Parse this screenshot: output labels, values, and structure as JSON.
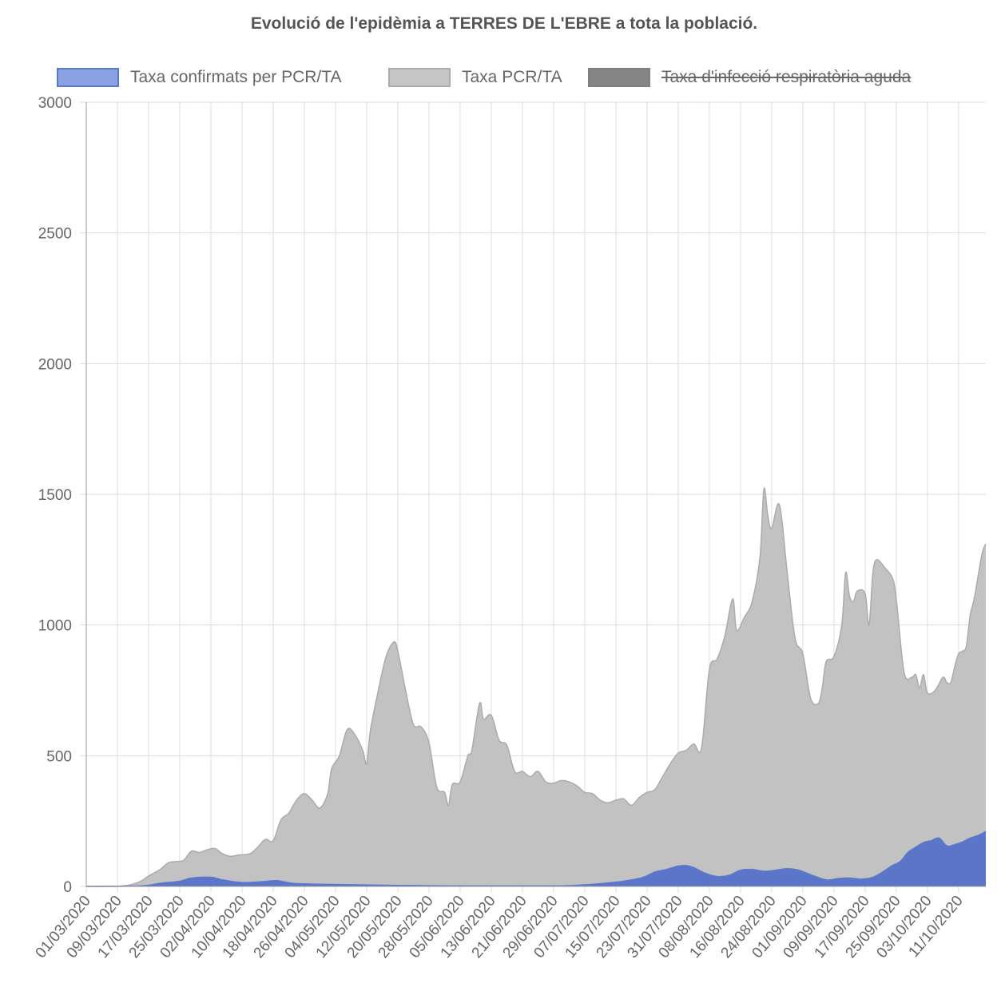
{
  "chart_data": {
    "type": "area",
    "title": "Evolució de l'epidèmia a TERRES DE L'EBRE a tota la població.",
    "xlabel": "",
    "ylabel": "",
    "ylim": [
      0,
      3000
    ],
    "yticks": [
      0,
      500,
      1000,
      1500,
      2000,
      2500,
      3000
    ],
    "grid": true,
    "legend_position": "top",
    "x_start": "01/03/2020",
    "x_end": "18/10/2020",
    "x_tick_labels": [
      "01/03/2020",
      "09/03/2020",
      "17/03/2020",
      "25/03/2020",
      "02/04/2020",
      "10/04/2020",
      "18/04/2020",
      "26/04/2020",
      "04/05/2020",
      "12/05/2020",
      "20/05/2020",
      "28/05/2020",
      "05/06/2020",
      "13/06/2020",
      "21/06/2020",
      "29/06/2020",
      "07/07/2020",
      "15/07/2020",
      "23/07/2020",
      "31/07/2020",
      "08/08/2020",
      "16/08/2020",
      "24/08/2020",
      "01/09/2020",
      "09/09/2020",
      "17/09/2020",
      "25/09/2020",
      "03/10/2020",
      "11/10/2020"
    ],
    "series": [
      {
        "name": "Taxa confirmats per PCR/TA",
        "color": "#5a78cc",
        "fill": "#5b76c8",
        "points": [
          [
            "01/03/2020",
            0
          ],
          [
            "15/03/2020",
            2
          ],
          [
            "20/03/2020",
            12
          ],
          [
            "25/03/2020",
            20
          ],
          [
            "28/03/2020",
            32
          ],
          [
            "02/04/2020",
            35
          ],
          [
            "05/04/2020",
            25
          ],
          [
            "10/04/2020",
            15
          ],
          [
            "15/04/2020",
            18
          ],
          [
            "19/04/2020",
            22
          ],
          [
            "23/04/2020",
            12
          ],
          [
            "01/05/2020",
            8
          ],
          [
            "10/05/2020",
            6
          ],
          [
            "20/05/2020",
            4
          ],
          [
            "01/06/2020",
            2
          ],
          [
            "15/06/2020",
            2
          ],
          [
            "01/07/2020",
            2
          ],
          [
            "07/07/2020",
            6
          ],
          [
            "12/07/2020",
            12
          ],
          [
            "17/07/2020",
            20
          ],
          [
            "22/07/2020",
            35
          ],
          [
            "25/07/2020",
            55
          ],
          [
            "28/07/2020",
            65
          ],
          [
            "31/07/2020",
            78
          ],
          [
            "02/08/2020",
            80
          ],
          [
            "04/08/2020",
            72
          ],
          [
            "07/08/2020",
            50
          ],
          [
            "10/08/2020",
            38
          ],
          [
            "13/08/2020",
            42
          ],
          [
            "16/08/2020",
            62
          ],
          [
            "19/08/2020",
            65
          ],
          [
            "22/08/2020",
            58
          ],
          [
            "25/08/2020",
            62
          ],
          [
            "28/08/2020",
            68
          ],
          [
            "31/08/2020",
            62
          ],
          [
            "03/09/2020",
            45
          ],
          [
            "07/09/2020",
            25
          ],
          [
            "10/09/2020",
            30
          ],
          [
            "13/09/2020",
            32
          ],
          [
            "16/09/2020",
            28
          ],
          [
            "19/09/2020",
            35
          ],
          [
            "22/09/2020",
            60
          ],
          [
            "24/09/2020",
            80
          ],
          [
            "26/09/2020",
            95
          ],
          [
            "28/09/2020",
            130
          ],
          [
            "30/09/2020",
            150
          ],
          [
            "02/10/2020",
            168
          ],
          [
            "04/10/2020",
            175
          ],
          [
            "06/10/2020",
            185
          ],
          [
            "08/10/2020",
            155
          ],
          [
            "10/10/2020",
            160
          ],
          [
            "12/10/2020",
            170
          ],
          [
            "14/10/2020",
            185
          ],
          [
            "16/10/2020",
            195
          ],
          [
            "18/10/2020",
            210
          ]
        ]
      },
      {
        "name": "Taxa PCR/TA",
        "color": "#ababab",
        "fill": "#c2c2c2",
        "points": [
          [
            "01/03/2020",
            0
          ],
          [
            "08/03/2020",
            0
          ],
          [
            "12/03/2020",
            5
          ],
          [
            "15/03/2020",
            20
          ],
          [
            "17/03/2020",
            40
          ],
          [
            "20/03/2020",
            65
          ],
          [
            "22/03/2020",
            90
          ],
          [
            "24/03/2020",
            95
          ],
          [
            "26/03/2020",
            100
          ],
          [
            "28/03/2020",
            135
          ],
          [
            "30/03/2020",
            130
          ],
          [
            "01/04/2020",
            140
          ],
          [
            "03/04/2020",
            145
          ],
          [
            "05/04/2020",
            125
          ],
          [
            "07/04/2020",
            115
          ],
          [
            "09/04/2020",
            120
          ],
          [
            "12/04/2020",
            125
          ],
          [
            "14/04/2020",
            150
          ],
          [
            "16/04/2020",
            180
          ],
          [
            "18/04/2020",
            175
          ],
          [
            "20/04/2020",
            255
          ],
          [
            "22/04/2020",
            280
          ],
          [
            "24/04/2020",
            330
          ],
          [
            "26/04/2020",
            355
          ],
          [
            "28/04/2020",
            330
          ],
          [
            "30/04/2020",
            300
          ],
          [
            "02/05/2020",
            355
          ],
          [
            "03/05/2020",
            450
          ],
          [
            "05/05/2020",
            500
          ],
          [
            "07/05/2020",
            600
          ],
          [
            "09/05/2020",
            580
          ],
          [
            "11/05/2020",
            520
          ],
          [
            "12/05/2020",
            470
          ],
          [
            "13/05/2020",
            600
          ],
          [
            "15/05/2020",
            750
          ],
          [
            "17/05/2020",
            880
          ],
          [
            "19/05/2020",
            935
          ],
          [
            "20/05/2020",
            900
          ],
          [
            "22/05/2020",
            750
          ],
          [
            "24/05/2020",
            620
          ],
          [
            "26/05/2020",
            610
          ],
          [
            "28/05/2020",
            550
          ],
          [
            "30/05/2020",
            380
          ],
          [
            "01/06/2020",
            360
          ],
          [
            "02/06/2020",
            310
          ],
          [
            "03/06/2020",
            390
          ],
          [
            "05/06/2020",
            400
          ],
          [
            "07/06/2020",
            500
          ],
          [
            "08/06/2020",
            520
          ],
          [
            "10/06/2020",
            700
          ],
          [
            "11/06/2020",
            640
          ],
          [
            "13/06/2020",
            655
          ],
          [
            "15/06/2020",
            560
          ],
          [
            "17/06/2020",
            540
          ],
          [
            "19/06/2020",
            440
          ],
          [
            "21/06/2020",
            440
          ],
          [
            "23/06/2020",
            420
          ],
          [
            "25/06/2020",
            440
          ],
          [
            "27/06/2020",
            400
          ],
          [
            "29/06/2020",
            395
          ],
          [
            "01/07/2020",
            405
          ],
          [
            "03/07/2020",
            400
          ],
          [
            "05/07/2020",
            385
          ],
          [
            "07/07/2020",
            360
          ],
          [
            "09/07/2020",
            355
          ],
          [
            "11/07/2020",
            330
          ],
          [
            "13/07/2020",
            320
          ],
          [
            "15/07/2020",
            330
          ],
          [
            "17/07/2020",
            335
          ],
          [
            "19/07/2020",
            310
          ],
          [
            "21/07/2020",
            340
          ],
          [
            "23/07/2020",
            360
          ],
          [
            "25/07/2020",
            370
          ],
          [
            "27/07/2020",
            420
          ],
          [
            "29/07/2020",
            470
          ],
          [
            "31/07/2020",
            510
          ],
          [
            "02/08/2020",
            520
          ],
          [
            "04/08/2020",
            545
          ],
          [
            "06/08/2020",
            530
          ],
          [
            "08/08/2020",
            830
          ],
          [
            "10/08/2020",
            870
          ],
          [
            "12/08/2020",
            960
          ],
          [
            "14/08/2020",
            1100
          ],
          [
            "15/08/2020",
            980
          ],
          [
            "17/08/2020",
            1030
          ],
          [
            "19/08/2020",
            1090
          ],
          [
            "21/08/2020",
            1260
          ],
          [
            "22/08/2020",
            1520
          ],
          [
            "23/08/2020",
            1420
          ],
          [
            "24/08/2020",
            1370
          ],
          [
            "26/08/2020",
            1460
          ],
          [
            "28/08/2020",
            1200
          ],
          [
            "30/08/2020",
            950
          ],
          [
            "01/09/2020",
            890
          ],
          [
            "03/09/2020",
            720
          ],
          [
            "05/09/2020",
            700
          ],
          [
            "06/09/2020",
            760
          ],
          [
            "07/09/2020",
            860
          ],
          [
            "09/09/2020",
            880
          ],
          [
            "11/09/2020",
            1000
          ],
          [
            "12/09/2020",
            1200
          ],
          [
            "13/09/2020",
            1110
          ],
          [
            "14/09/2020",
            1090
          ],
          [
            "15/09/2020",
            1130
          ],
          [
            "17/09/2020",
            1120
          ],
          [
            "18/09/2020",
            1000
          ],
          [
            "19/09/2020",
            1200
          ],
          [
            "20/09/2020",
            1250
          ],
          [
            "22/09/2020",
            1220
          ],
          [
            "24/09/2020",
            1180
          ],
          [
            "25/09/2020",
            1100
          ],
          [
            "27/09/2020",
            820
          ],
          [
            "29/09/2020",
            800
          ],
          [
            "30/09/2020",
            810
          ],
          [
            "01/10/2020",
            760
          ],
          [
            "02/10/2020",
            810
          ],
          [
            "03/10/2020",
            740
          ],
          [
            "05/10/2020",
            750
          ],
          [
            "07/10/2020",
            800
          ],
          [
            "08/10/2020",
            780
          ],
          [
            "09/10/2020",
            780
          ],
          [
            "10/10/2020",
            840
          ],
          [
            "11/10/2020",
            890
          ],
          [
            "12/10/2020",
            900
          ],
          [
            "13/10/2020",
            920
          ],
          [
            "14/10/2020",
            1040
          ],
          [
            "15/10/2020",
            1100
          ],
          [
            "17/10/2020",
            1270
          ],
          [
            "18/10/2020",
            1310
          ]
        ]
      },
      {
        "name": "Taxa d'infecció respiratòria aguda",
        "color": "#7f7f7f",
        "fill": "#858585",
        "hidden": true,
        "points": []
      }
    ]
  }
}
